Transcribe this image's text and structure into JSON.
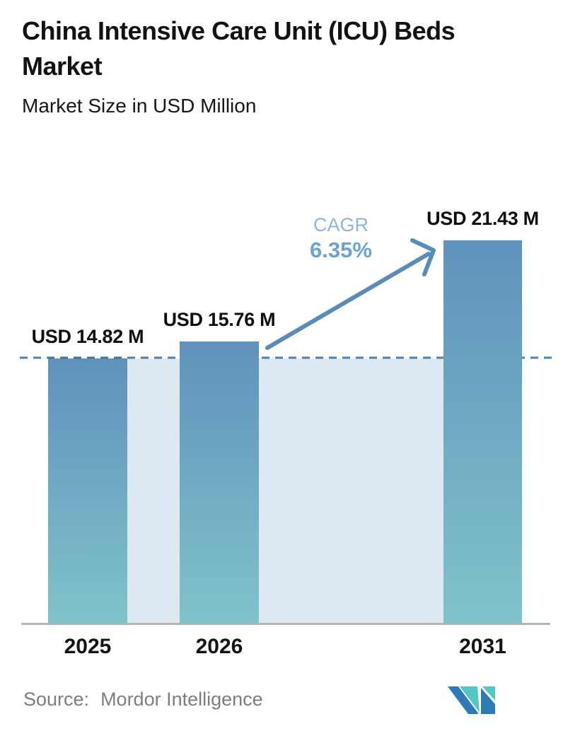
{
  "header": {
    "title": "China Intensive Care Unit (ICU) Beds\nMarket",
    "subtitle": "Market Size in USD Million"
  },
  "chart_data": {
    "type": "bar",
    "title": "China Intensive Care Unit (ICU) Beds Market",
    "ylabel": "Market Size in USD Million",
    "categories": [
      "2025",
      "2026",
      "2031"
    ],
    "values": [
      14.82,
      15.76,
      21.43
    ],
    "bar_labels": [
      "USD 14.82 M",
      "USD 15.76 M",
      "USD 21.43 M"
    ],
    "cagr": {
      "label": "CAGR",
      "value": "6.35%"
    },
    "dashed_reference_value": 14.82,
    "ylim": [
      0,
      21.43
    ],
    "grid": "off",
    "legend": "none",
    "colors": {
      "bar_gradient_top": "#5f92bc",
      "bar_gradient_bottom": "#80c3ca",
      "reference_band": "#dde8f1",
      "dashed_line": "#4d81aa",
      "dashed_line_over_bar": "#44759c",
      "arrow": "#5a8cb8",
      "cagr_label": "#8fb5d8",
      "cagr_value": "#6ba4d4",
      "axis_line": "#b5b5b5"
    }
  },
  "footer": {
    "source_label": "Source:",
    "source_value": "Mordor Intelligence",
    "logo_name": "mordor-intelligence-logo",
    "logo_colors": {
      "blue": "#2e7bb8",
      "teal": "#54c6c3"
    }
  }
}
